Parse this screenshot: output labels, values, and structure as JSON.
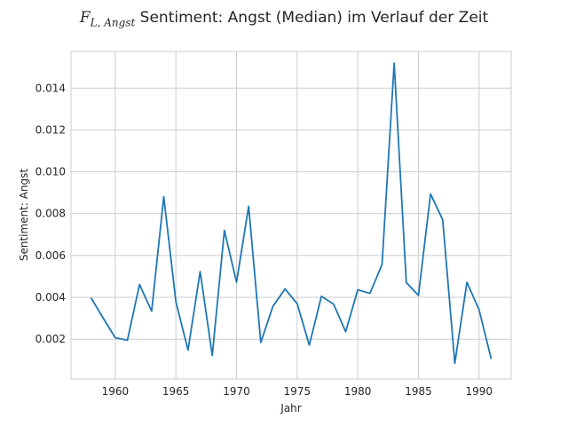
{
  "chart_data": {
    "type": "line",
    "title_math_main": "F",
    "title_math_sub": "L, Angst",
    "title_text": " Sentiment: Angst (Median) im Verlauf der Zeit",
    "xlabel": "Jahr",
    "ylabel": "Sentiment: Angst",
    "xlim": [
      1956.35,
      1992.65
    ],
    "ylim": [
      0.0001,
      0.01575
    ],
    "x_ticks": [
      1960,
      1965,
      1970,
      1975,
      1980,
      1985,
      1990
    ],
    "x_tick_labels": [
      "1960",
      "1965",
      "1970",
      "1975",
      "1980",
      "1985",
      "1990"
    ],
    "y_ticks": [
      0.002,
      0.004,
      0.006,
      0.008,
      0.01,
      0.012,
      0.014
    ],
    "y_tick_labels": [
      "0.002",
      "0.004",
      "0.006",
      "0.008",
      "0.010",
      "0.012",
      "0.014"
    ],
    "grid": true,
    "color": "#1f77b4",
    "x": [
      1958,
      1959,
      1960,
      1961,
      1962,
      1963,
      1964,
      1965,
      1966,
      1967,
      1968,
      1969,
      1970,
      1971,
      1972,
      1973,
      1974,
      1975,
      1976,
      1977,
      1978,
      1979,
      1980,
      1981,
      1982,
      1983,
      1984,
      1985,
      1986,
      1987,
      1988,
      1989,
      1990,
      1991
    ],
    "values": [
      0.00398,
      0.00301,
      0.00207,
      0.00195,
      0.00461,
      0.00334,
      0.00881,
      0.00379,
      0.00148,
      0.00523,
      0.00122,
      0.0072,
      0.00472,
      0.00835,
      0.00184,
      0.00357,
      0.0044,
      0.0037,
      0.00172,
      0.00405,
      0.00368,
      0.00236,
      0.00436,
      0.00419,
      0.00557,
      0.01519,
      0.00471,
      0.00409,
      0.00894,
      0.00771,
      0.00085,
      0.00472,
      0.00341,
      0.00106
    ]
  }
}
